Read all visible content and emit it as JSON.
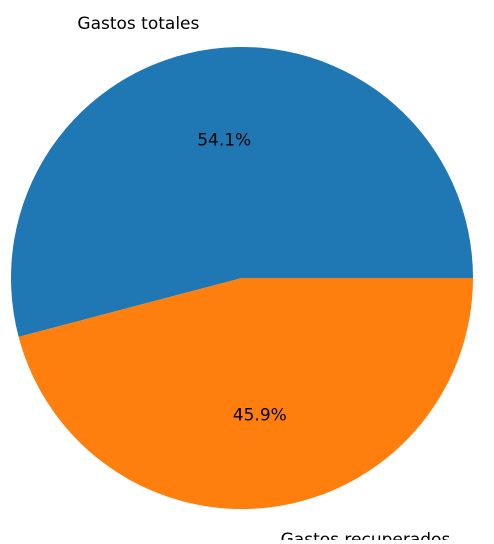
{
  "chart_data": {
    "type": "pie",
    "slices": [
      {
        "label": "Gastos totales",
        "value": 54.1,
        "pct_label": "54.1%",
        "color": "#1f77b4"
      },
      {
        "label": "Gastos recuperados",
        "value": 45.9,
        "pct_label": "45.9%",
        "color": "#ff7f0e"
      }
    ],
    "start_angle": 0,
    "direction": "counterclockwise"
  }
}
